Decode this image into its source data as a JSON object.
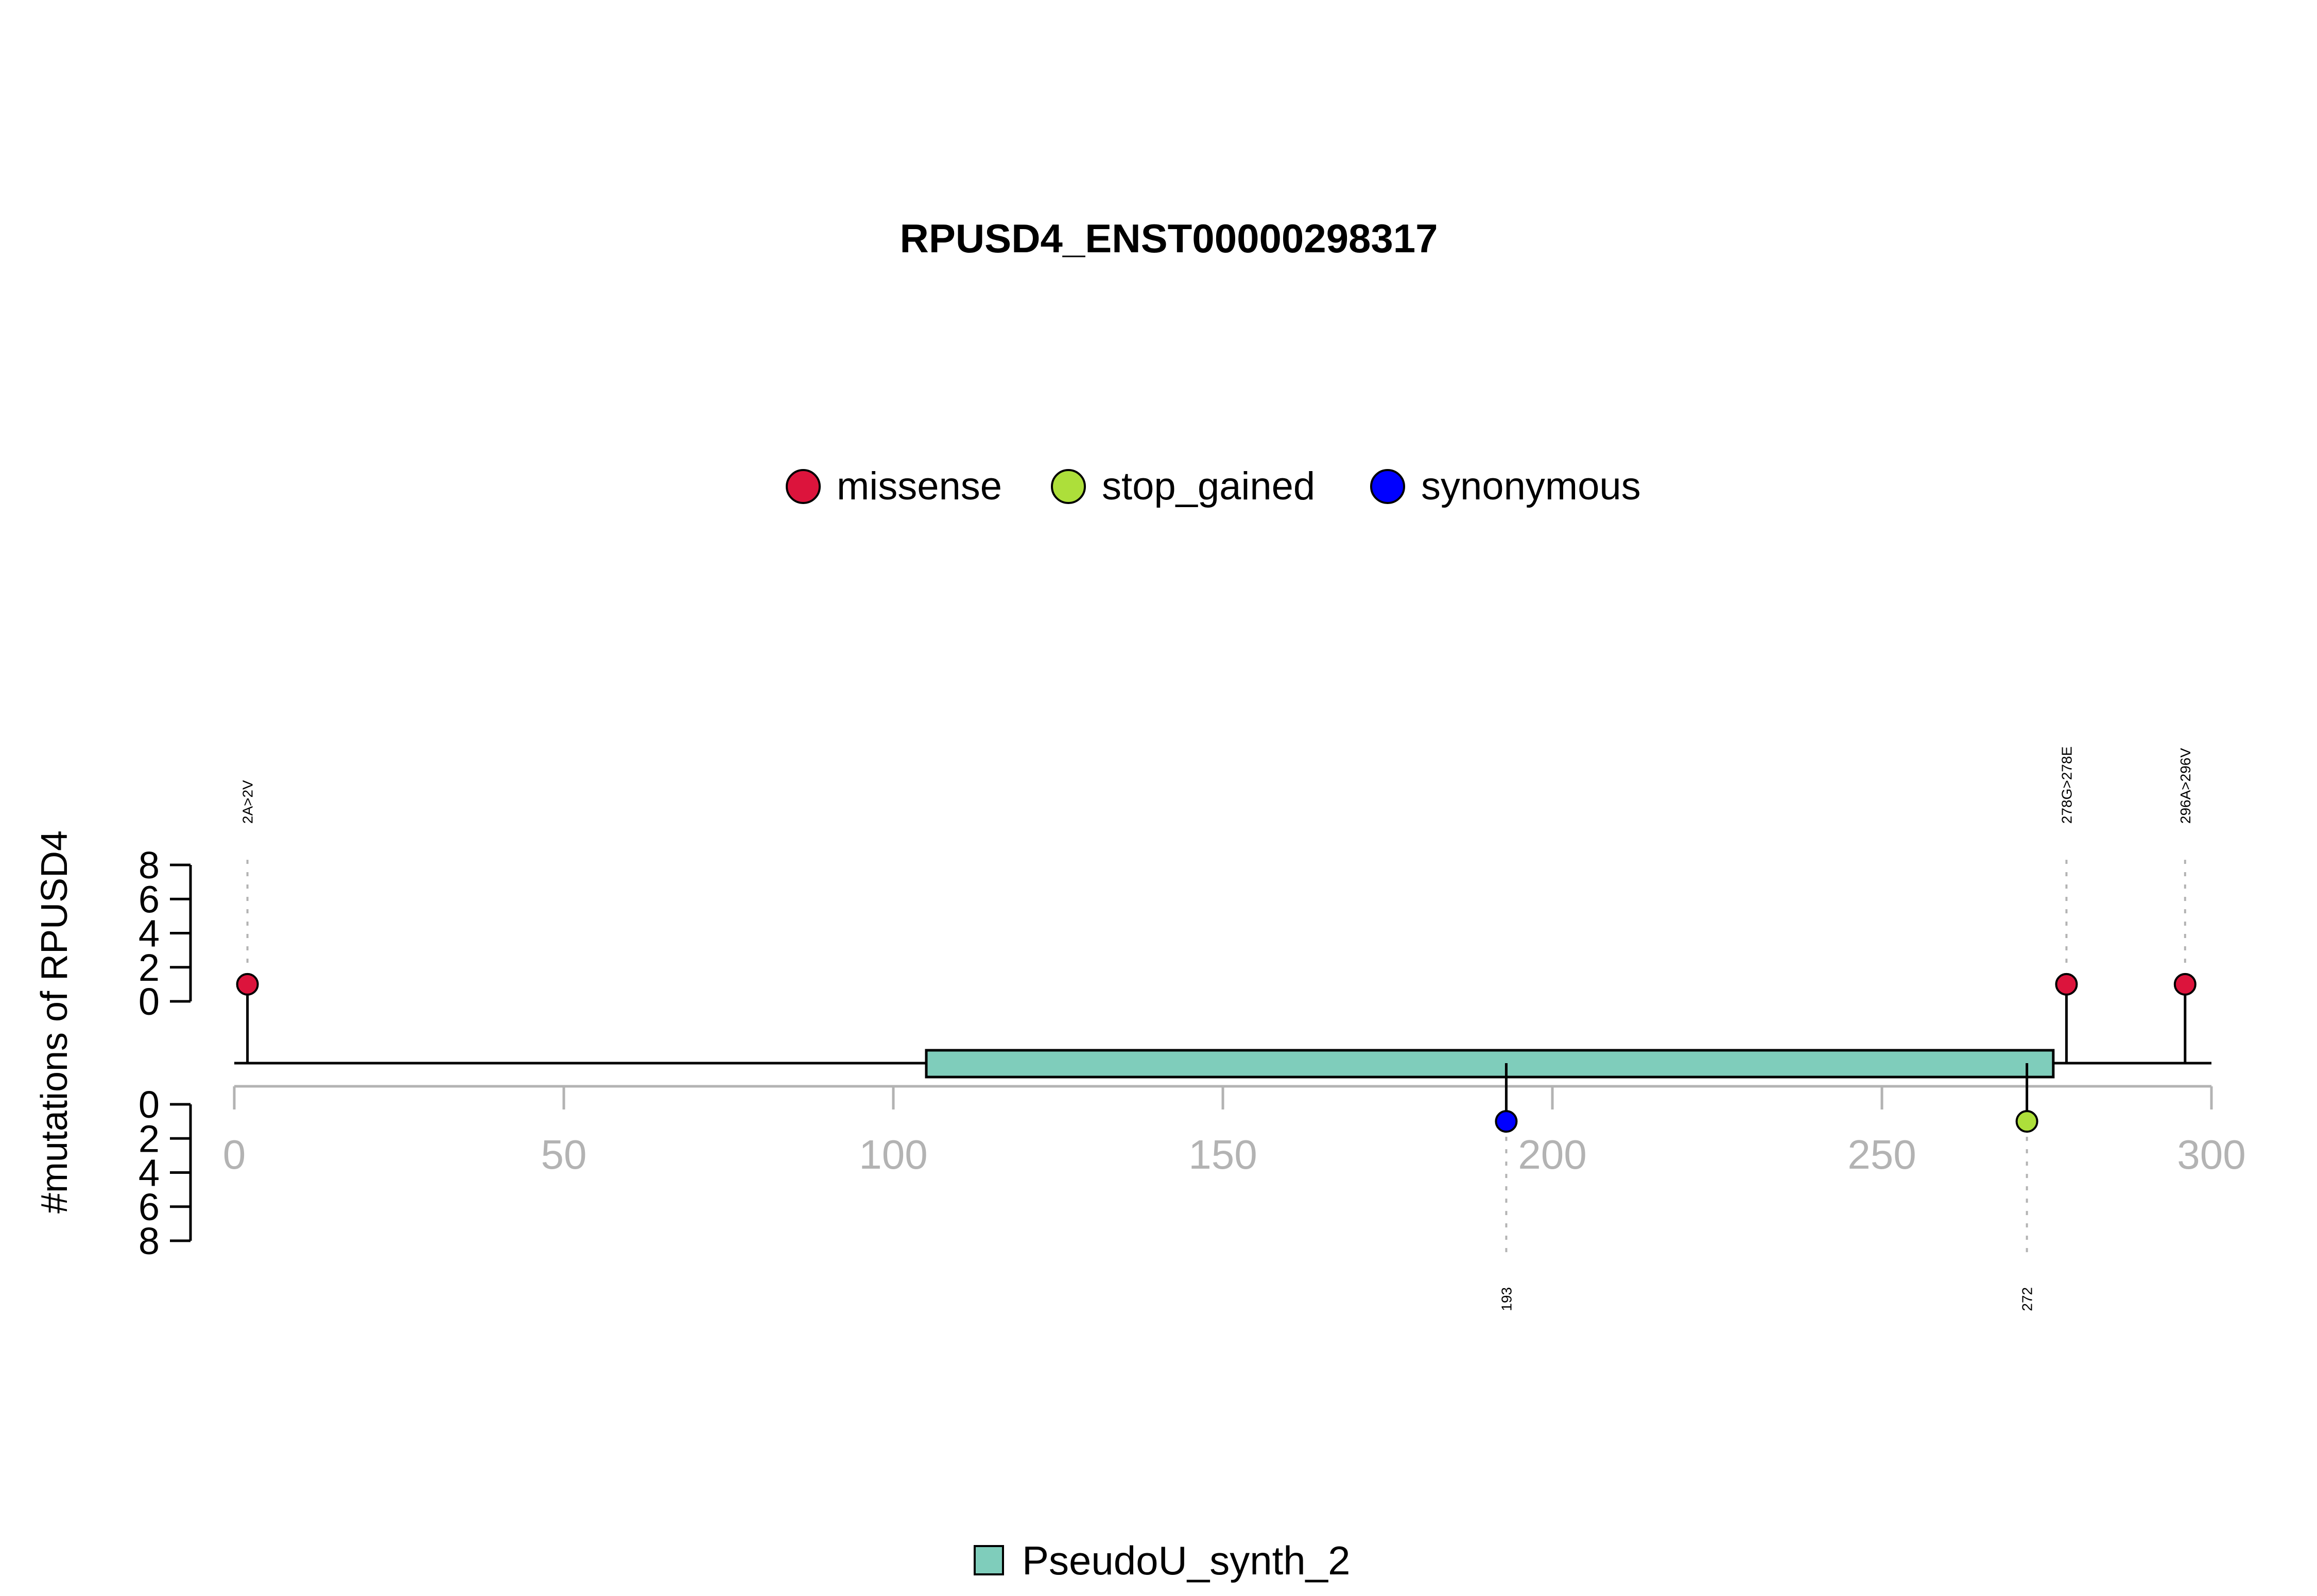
{
  "chart_data": {
    "type": "lollipop",
    "title": "RPUSD4_ENST00000298317",
    "ylabel": "#mutations of RPUSD4",
    "xlim": [
      0,
      300
    ],
    "x_ticks": [
      0,
      50,
      100,
      150,
      200,
      250,
      300
    ],
    "count_ticks": [
      0,
      2,
      4,
      6,
      8
    ],
    "legend": [
      {
        "name": "missense",
        "color": "#DC143C"
      },
      {
        "name": "stop_gained",
        "color": "#ADDF3A"
      },
      {
        "name": "synonymous",
        "color": "#0000FF"
      }
    ],
    "protein_length": 300,
    "domains": [
      {
        "name": "PseudoU_synth_2",
        "start": 105,
        "end": 276,
        "color": "#7FCDBB"
      }
    ],
    "mutations": [
      {
        "position": 2,
        "label": "2A>2V",
        "type": "missense",
        "count": 1,
        "side": "top",
        "color": "#DC143C"
      },
      {
        "position": 278,
        "label": "278G>278E",
        "type": "missense",
        "count": 1,
        "side": "top",
        "color": "#DC143C"
      },
      {
        "position": 296,
        "label": "296A>296V",
        "type": "missense",
        "count": 1,
        "side": "top",
        "color": "#DC143C"
      },
      {
        "position": 193,
        "label": "193",
        "type": "synonymous",
        "count": 1,
        "side": "bottom",
        "color": "#0000FF"
      },
      {
        "position": 272,
        "label": "272",
        "type": "stop_gained",
        "count": 1,
        "side": "bottom",
        "color": "#ADDF3A"
      }
    ]
  }
}
